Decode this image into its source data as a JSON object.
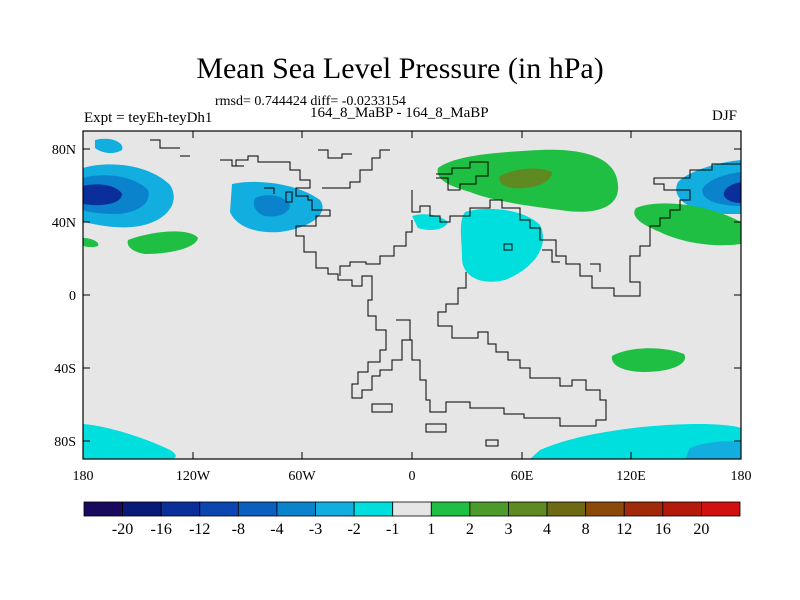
{
  "title": "Mean Sea Level Pressure (in hPa)",
  "stats": "rmsd= 0.744424 diff= -0.0233154",
  "experiment": "Expt = teyEh-teyDh1",
  "runs": "164_8_MaBP - 164_8_MaBP",
  "season": "DJF",
  "lat_ticks": [
    "80N",
    "40N",
    "0",
    "40S",
    "80S"
  ],
  "lon_ticks": [
    "180",
    "120W",
    "60W",
    "0",
    "60E",
    "120E",
    "180"
  ],
  "colorbar": {
    "labels": [
      "-20",
      "-16",
      "-12",
      "-8",
      "-4",
      "-3",
      "-2",
      "-1",
      "1",
      "2",
      "3",
      "4",
      "8",
      "12",
      "16",
      "20"
    ],
    "colors": [
      "#1a0a5e",
      "#0a1a78",
      "#0b2f9a",
      "#0c46b0",
      "#0b5fbf",
      "#0a82cc",
      "#12aee0",
      "#00dede",
      "#e6e6e6",
      "#1fbf44",
      "#4c9a2a",
      "#5f8a22",
      "#6e6a14",
      "#8c4a0a",
      "#a02a0a",
      "#b41a0a",
      "#d21010"
    ]
  },
  "chart_data": {
    "type": "map",
    "variable": "Mean Sea Level Pressure difference",
    "units": "hPa",
    "projection": "cylindrical equidistant",
    "lon_range": [
      -180,
      180
    ],
    "lat_range": [
      -90,
      90
    ],
    "anomalies": [
      {
        "region": "North Pacific (dateline, ~50N)",
        "sign": "negative",
        "max_magnitude_hPa": -12
      },
      {
        "region": "Western North America (~50N)",
        "sign": "negative",
        "max_magnitude_hPa": -4
      },
      {
        "region": "Central Asia (~40N)",
        "sign": "negative",
        "max_magnitude_hPa": -1
      },
      {
        "region": "Northern Eurasia (~65N)",
        "sign": "positive",
        "max_magnitude_hPa": 3
      },
      {
        "region": "Western North Pacific (~35N)",
        "sign": "positive",
        "max_magnitude_hPa": 1
      },
      {
        "region": "Eastern Pacific (~25N)",
        "sign": "positive",
        "max_magnitude_hPa": 1
      },
      {
        "region": "South Indian Ocean (~30S)",
        "sign": "positive",
        "max_magnitude_hPa": 1
      },
      {
        "region": "Antarctic margin (~80S)",
        "sign": "negative",
        "max_magnitude_hPa": -1
      }
    ]
  }
}
